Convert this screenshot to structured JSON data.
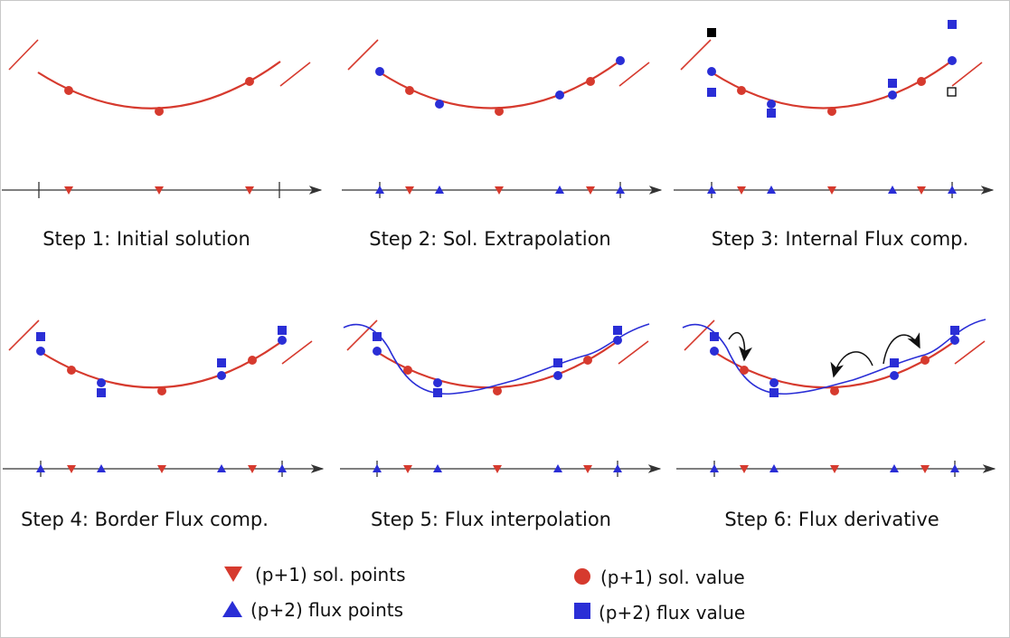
{
  "steps": [
    {
      "label": "Step 1: Initial solution"
    },
    {
      "label": "Step 2: Sol. Extrapolation"
    },
    {
      "label": "Step 3: Internal Flux comp."
    },
    {
      "label": "Step 4: Border Flux comp."
    },
    {
      "label": "Step 5: Flux interpolation"
    },
    {
      "label": "Step 6: Flux derivative"
    }
  ],
  "legend": {
    "sol_points": "(p+1) sol. points",
    "flux_points": "(p+2) flux points",
    "sol_value": "(p+1) sol. value",
    "flux_value": "(p+2) flux value"
  },
  "colors": {
    "solution": "#d63a2e",
    "flux": "#2a2ed6",
    "axis": "#333333",
    "arrow": "#111111"
  }
}
